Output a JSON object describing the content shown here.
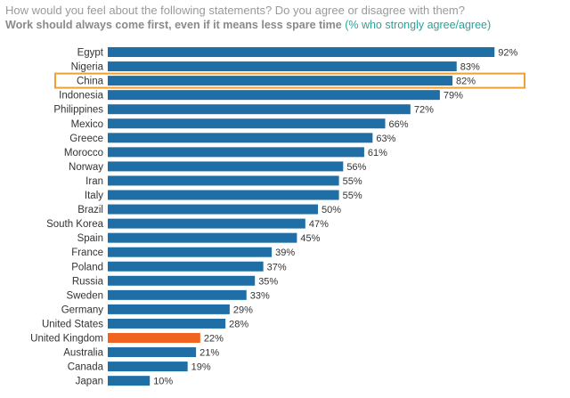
{
  "header": {
    "question": "How would you feel about the following statements? Do you agree or disagree with them?",
    "statement": "Work should always come first, even if it means less spare time",
    "measure": "(% who strongly agree/agree)"
  },
  "colors": {
    "bar": "#1f6fa6",
    "highlight_bar": "#f0641f",
    "highlight_box": "#f0a030",
    "question_text": "#9a9a9a",
    "teal_text": "#2aa39a"
  },
  "chart_data": {
    "type": "bar",
    "orientation": "horizontal",
    "categories": [
      "Egypt",
      "Nigeria",
      "China",
      "Indonesia",
      "Philippines",
      "Mexico",
      "Greece",
      "Morocco",
      "Norway",
      "Iran",
      "Italy",
      "Brazil",
      "South Korea",
      "Spain",
      "France",
      "Poland",
      "Russia",
      "Sweden",
      "Germany",
      "United States",
      "United Kingdom",
      "Australia",
      "Canada",
      "Japan"
    ],
    "values": [
      92,
      83,
      82,
      79,
      72,
      66,
      63,
      61,
      56,
      55,
      55,
      50,
      47,
      45,
      39,
      37,
      35,
      33,
      29,
      28,
      22,
      21,
      19,
      10
    ],
    "value_labels": [
      "92%",
      "83%",
      "82%",
      "79%",
      "72%",
      "66%",
      "63%",
      "61%",
      "56%",
      "55%",
      "55%",
      "50%",
      "47%",
      "45%",
      "39%",
      "37%",
      "35%",
      "33%",
      "29%",
      "28%",
      "22%",
      "21%",
      "19%",
      "10%"
    ],
    "highlighted_bar": "United Kingdom",
    "outlined_row": "China",
    "xlim": [
      0,
      100
    ],
    "grid": false
  }
}
